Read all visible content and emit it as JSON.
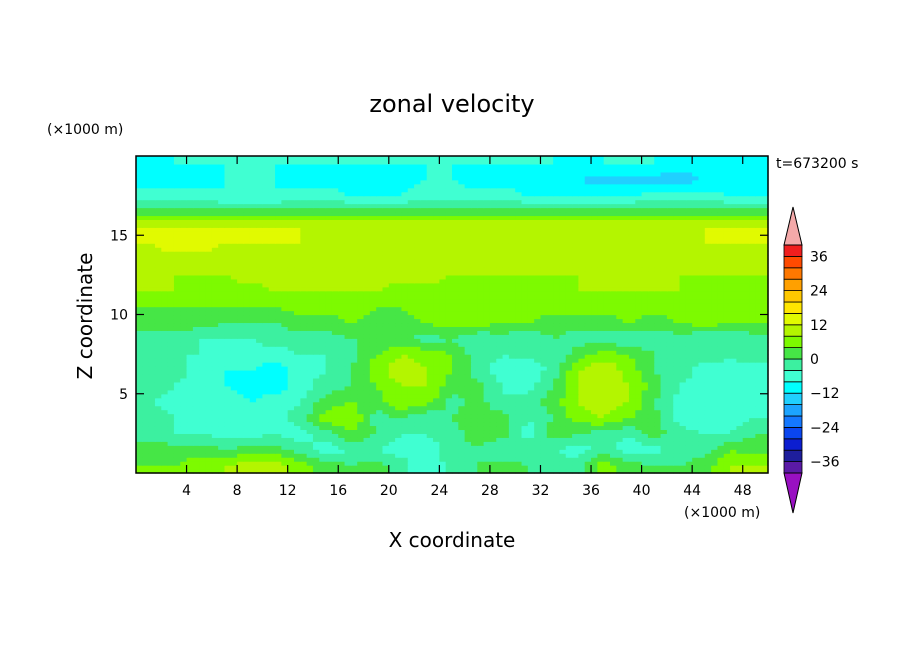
{
  "chart_data": {
    "type": "heatmap",
    "title": "zonal velocity",
    "xlabel": "X coordinate",
    "ylabel": "Z coordinate",
    "x_unit": "(×1000 m)",
    "y_unit": "(×1000 m)",
    "time_label": "t=673200 s",
    "xlim": [
      0,
      50
    ],
    "ylim": [
      0,
      20
    ],
    "x_ticks": [
      4,
      8,
      12,
      16,
      20,
      24,
      28,
      32,
      36,
      40,
      44,
      48
    ],
    "y_ticks": [
      5,
      10,
      15
    ],
    "colorbar": {
      "levels": [
        -40,
        -36,
        -32,
        -28,
        -24,
        -20,
        -16,
        -12,
        -8,
        -4,
        0,
        4,
        8,
        12,
        16,
        20,
        24,
        28,
        32,
        36,
        40
      ],
      "tick_labels": [
        36,
        24,
        12,
        0,
        -12,
        -24,
        -36
      ],
      "colors": [
        "#5a1aa6",
        "#1e1e9c",
        "#0c1ed0",
        "#0a46f0",
        "#1478ff",
        "#1ca4ff",
        "#20d0ff",
        "#00ffff",
        "#40ffd2",
        "#3cf0a0",
        "#46e646",
        "#7dfa00",
        "#b4f500",
        "#e1fa00",
        "#ffe600",
        "#ffc800",
        "#ffa000",
        "#ff7800",
        "#ff4a00",
        "#f01e1e"
      ],
      "over_color": "#f4a9a9",
      "under_color": "#9910c2"
    },
    "grid_resolution": [
      25,
      20
    ],
    "field_description": "zonal velocity values (approx) on a 25 x 20 grid; x centers 1..49, z centers 0.5..19.5",
    "values": [
      [
        4,
        4,
        6,
        8,
        10,
        10,
        6,
        2,
        0,
        2,
        -2,
        -8,
        -2,
        0,
        2,
        0,
        -2,
        -2,
        6,
        2,
        0,
        0,
        2,
        8,
        8
      ],
      [
        2,
        2,
        2,
        0,
        2,
        2,
        -2,
        -6,
        -4,
        -4,
        -6,
        -6,
        -2,
        0,
        -4,
        -2,
        -4,
        -6,
        -2,
        -6,
        -6,
        -2,
        -2,
        4,
        2
      ],
      [
        -2,
        -4,
        -4,
        -6,
        -6,
        -4,
        -6,
        -2,
        4,
        0,
        -4,
        -4,
        -2,
        2,
        2,
        -6,
        2,
        0,
        -2,
        -4,
        2,
        -2,
        -4,
        -4,
        0
      ],
      [
        -2,
        -4,
        -6,
        -6,
        -4,
        -6,
        -2,
        6,
        8,
        -2,
        0,
        -4,
        0,
        4,
        2,
        -4,
        0,
        6,
        8,
        4,
        2,
        -6,
        -8,
        -8,
        -4
      ],
      [
        -4,
        -6,
        -8,
        -6,
        -8,
        -6,
        -4,
        2,
        4,
        2,
        8,
        6,
        -2,
        2,
        -4,
        -2,
        2,
        8,
        10,
        8,
        0,
        -6,
        -8,
        -8,
        -6
      ],
      [
        -2,
        -4,
        -6,
        -8,
        -10,
        -10,
        -6,
        -2,
        0,
        4,
        8,
        8,
        2,
        2,
        -4,
        -6,
        0,
        8,
        12,
        8,
        2,
        -4,
        -6,
        -8,
        -8
      ],
      [
        -2,
        -2,
        -6,
        -8,
        -8,
        -10,
        -6,
        -4,
        0,
        6,
        12,
        8,
        4,
        -2,
        -6,
        -8,
        -2,
        8,
        12,
        6,
        0,
        -2,
        -6,
        -8,
        -6
      ],
      [
        0,
        -4,
        -4,
        -6,
        -6,
        -6,
        -4,
        -4,
        -2,
        4,
        8,
        6,
        4,
        -2,
        -4,
        -2,
        -4,
        2,
        6,
        4,
        0,
        -4,
        -2,
        -2,
        -2
      ],
      [
        -2,
        -2,
        -4,
        -4,
        -4,
        -2,
        -2,
        -2,
        0,
        0,
        2,
        -2,
        0,
        -4,
        -2,
        -4,
        0,
        -2,
        -2,
        -4,
        -2,
        -2,
        -4,
        -4,
        -2
      ],
      [
        2,
        2,
        2,
        0,
        0,
        0,
        2,
        2,
        4,
        2,
        2,
        4,
        6,
        6,
        4,
        4,
        2,
        2,
        2,
        4,
        2,
        4,
        6,
        4,
        4
      ],
      [
        4,
        4,
        4,
        4,
        4,
        4,
        6,
        6,
        6,
        4,
        4,
        6,
        8,
        8,
        6,
        6,
        6,
        6,
        6,
        6,
        6,
        6,
        6,
        6,
        6
      ],
      [
        8,
        8,
        6,
        6,
        6,
        8,
        8,
        8,
        8,
        8,
        6,
        6,
        6,
        6,
        6,
        6,
        6,
        8,
        8,
        8,
        8,
        8,
        6,
        6,
        6
      ],
      [
        8,
        8,
        8,
        8,
        10,
        10,
        10,
        10,
        10,
        10,
        10,
        10,
        8,
        8,
        8,
        8,
        8,
        8,
        8,
        8,
        8,
        8,
        8,
        8,
        8
      ],
      [
        10,
        10,
        10,
        10,
        10,
        10,
        10,
        10,
        10,
        10,
        10,
        10,
        10,
        10,
        10,
        10,
        10,
        10,
        10,
        10,
        10,
        10,
        10,
        10,
        10
      ],
      [
        12,
        14,
        14,
        12,
        12,
        12,
        12,
        10,
        10,
        10,
        10,
        10,
        10,
        10,
        10,
        10,
        10,
        10,
        10,
        10,
        10,
        10,
        12,
        12,
        12
      ],
      [
        12,
        12,
        12,
        12,
        12,
        12,
        12,
        12,
        12,
        12,
        12,
        12,
        12,
        12,
        12,
        12,
        12,
        12,
        12,
        12,
        12,
        12,
        12,
        12,
        12
      ],
      [
        2,
        2,
        2,
        2,
        2,
        2,
        2,
        2,
        2,
        2,
        2,
        2,
        2,
        2,
        2,
        2,
        2,
        2,
        2,
        2,
        2,
        2,
        2,
        2,
        2
      ],
      [
        -6,
        -6,
        -6,
        -8,
        -8,
        -8,
        -6,
        -6,
        -8,
        -8,
        -8,
        -6,
        -6,
        -6,
        -6,
        -8,
        -8,
        -8,
        -8,
        -8,
        -6,
        -6,
        -6,
        -8,
        -8
      ],
      [
        -10,
        -10,
        -10,
        -8,
        -8,
        -8,
        -10,
        -10,
        -10,
        -10,
        -10,
        -8,
        -8,
        -10,
        -10,
        -10,
        -10,
        -12,
        -14,
        -14,
        -14,
        -14,
        -12,
        -10,
        -10
      ],
      [
        -12,
        -8,
        -8,
        -8,
        -8,
        -8,
        -8,
        -8,
        -8,
        -8,
        -8,
        -8,
        -8,
        -8,
        -8,
        -8,
        -8,
        -10,
        -8,
        -8,
        -8,
        -10,
        -10,
        -10,
        -10
      ]
    ]
  }
}
